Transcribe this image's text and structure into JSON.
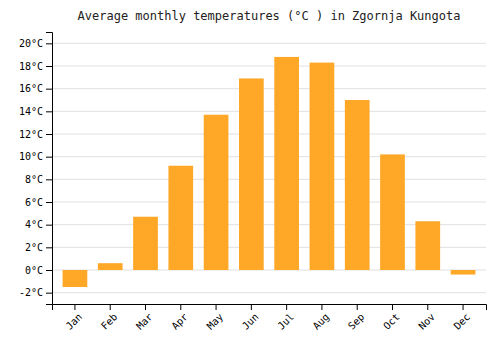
{
  "chart_data": {
    "type": "bar",
    "title": "Average monthly temperatures (°C ) in Zgornja Kungota",
    "categories": [
      "Jan",
      "Feb",
      "Mar",
      "Apr",
      "May",
      "Jun",
      "Jul",
      "Aug",
      "Sep",
      "Oct",
      "Nov",
      "Dec"
    ],
    "values": [
      -1.5,
      0.6,
      4.7,
      9.2,
      13.7,
      16.9,
      18.8,
      18.3,
      15.0,
      10.2,
      4.3,
      -0.4
    ],
    "color": "#FFA726",
    "ylim": [
      -3,
      21
    ],
    "yticks": [
      {
        "value": -2,
        "label": "-2°C"
      },
      {
        "value": 0,
        "label": "0°C"
      },
      {
        "value": 2,
        "label": "2°C"
      },
      {
        "value": 4,
        "label": "4°C"
      },
      {
        "value": 6,
        "label": "6°C"
      },
      {
        "value": 8,
        "label": "8°C"
      },
      {
        "value": 10,
        "label": "10°C"
      },
      {
        "value": 12,
        "label": "12°C"
      },
      {
        "value": 14,
        "label": "14°C"
      },
      {
        "value": 16,
        "label": "16°C"
      },
      {
        "value": 18,
        "label": "18°C"
      },
      {
        "value": 20,
        "label": "20°C"
      }
    ],
    "grid": true
  }
}
